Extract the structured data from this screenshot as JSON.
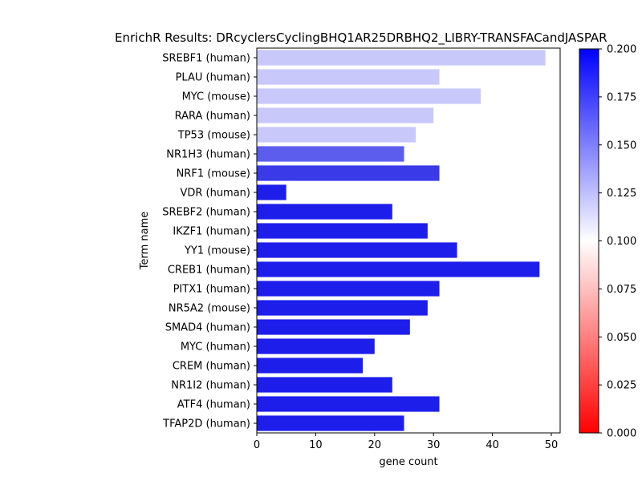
{
  "chart_data": {
    "type": "bar",
    "orientation": "horizontal",
    "title": "EnrichR Results: DRcyclersCyclingBHQ1AR25DRBHQ2_LIBRY-TRANSFACandJASPAR",
    "xlabel": "gene count",
    "ylabel": "Term name",
    "xlim": [
      0,
      51.5
    ],
    "x_ticks": [
      "0",
      "10",
      "20",
      "30",
      "40",
      "50"
    ],
    "grid": false,
    "categories": [
      "SREBF1 (human)",
      "PLAU (human)",
      "MYC (mouse)",
      "RARA (human)",
      "TP53 (mouse)",
      "NR1H3 (human)",
      "NRF1 (mouse)",
      "VDR (human)",
      "SREBF2 (human)",
      "IKZF1 (human)",
      "YY1 (mouse)",
      "CREB1 (human)",
      "PITX1 (human)",
      "NR5A2 (mouse)",
      "SMAD4 (human)",
      "MYC (human)",
      "CREM (human)",
      "NR1I2 (human)",
      "ATF4 (human)",
      "TFAP2D (human)"
    ],
    "values": [
      49,
      31,
      38,
      30,
      27,
      25,
      31,
      5,
      23,
      29,
      34,
      48,
      31,
      29,
      26,
      20,
      18,
      23,
      31,
      25
    ],
    "bar_colors": [
      "#c8c8fa",
      "#c8c8fa",
      "#c8c8fa",
      "#c8c8fa",
      "#c8c8fa",
      "#5c5ced",
      "#3a3ae8",
      "#1e1eeb",
      "#1e1eeb",
      "#1e1eeb",
      "#1e1eeb",
      "#1e1eeb",
      "#1e1eeb",
      "#1e1eeb",
      "#1e1eeb",
      "#1e1eeb",
      "#1e1eeb",
      "#1e1eeb",
      "#1e1eeb",
      "#1e1eeb"
    ],
    "colorbar": {
      "min": 0.0,
      "max": 0.2,
      "ticks": [
        "0.000",
        "0.025",
        "0.050",
        "0.075",
        "0.100",
        "0.125",
        "0.150",
        "0.175",
        "0.200"
      ],
      "colors": {
        "low": "#ff0000",
        "mid": "#ffffff",
        "high": "#0000ff"
      }
    }
  }
}
